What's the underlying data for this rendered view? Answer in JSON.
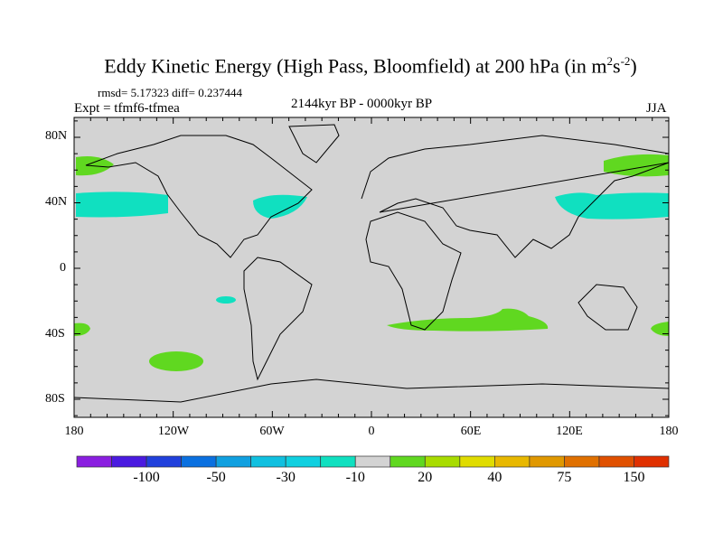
{
  "title": {
    "main": "Eddy Kinetic Energy (High Pass, Bloomfield) at 200 hPa (in m",
    "sup1": "2",
    "mid": "s",
    "sup2": "-2",
    "end": ")"
  },
  "stats": "rmsd= 5.17323 diff= 0.237444",
  "experiment": "Expt = tfmf6-tfmea",
  "period": "2144kyr BP - 0000kyr BP",
  "season": "JJA",
  "map": {
    "lat_labels": [
      "80N",
      "40N",
      "0",
      "40S",
      "80S"
    ],
    "lon_labels": [
      "180",
      "120W",
      "60W",
      "0",
      "60E",
      "120E",
      "180"
    ],
    "background_color": "#d3d3d3"
  },
  "colorbar": {
    "colors": [
      "#8a1ee0",
      "#4a1ae0",
      "#2040dc",
      "#0a70e0",
      "#10a0e0",
      "#10c0e0",
      "#10d0e0",
      "#10e0c0",
      "#d3d3d3",
      "#60d820",
      "#a8dc00",
      "#e0dc00",
      "#e8b800",
      "#e09800",
      "#e07000",
      "#e05000",
      "#e03000"
    ],
    "labels": [
      "-100",
      "-50",
      "-30",
      "-10",
      "20",
      "40",
      "75",
      "150"
    ]
  }
}
